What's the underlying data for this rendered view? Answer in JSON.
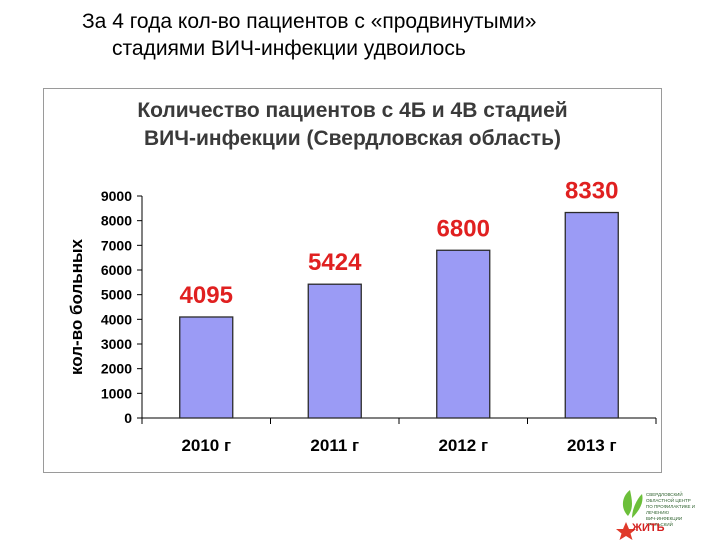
{
  "slide": {
    "title_line1": "За 4 года кол-во пациентов с «продвинутыми»",
    "title_line2": "стадиями ВИЧ-инфекции удвоилось"
  },
  "chart_data": {
    "type": "bar",
    "title": "Количество пациентов с 4Б и 4В стадией ВИЧ-инфекции  (Свердловская область)",
    "title_line1": "Количество пациентов с 4Б и 4В стадией",
    "title_line2": "ВИЧ-инфекции  (Свердловская область)",
    "categories": [
      "2010 г",
      "2011 г",
      "2012 г",
      "2013 г"
    ],
    "values": [
      4095,
      5424,
      6800,
      8330
    ],
    "data_labels": [
      "4095",
      "5424",
      "6800",
      "8330"
    ],
    "ylabel": "кол-во больных",
    "xlabel": "",
    "ylim": [
      0,
      9000
    ],
    "yticks": [
      0,
      1000,
      2000,
      3000,
      4000,
      5000,
      6000,
      7000,
      8000,
      9000
    ],
    "grid": false,
    "legend": "none",
    "colors": {
      "bar_fill": "#9b9bf5",
      "bar_stroke": "#2b2b2b",
      "data_label": "#e02020",
      "axis": "#000000",
      "title": "#3a3a3a"
    }
  },
  "logo": {
    "text_lines": [
      "Свердловский",
      "областной центр",
      "по профилактике и лечению",
      "ВИЧ-инфекции",
      "Уральский"
    ],
    "word": "ЖИТЬ",
    "colors": {
      "leaf": "#6cbf3a",
      "star": "#e03a2a"
    }
  }
}
